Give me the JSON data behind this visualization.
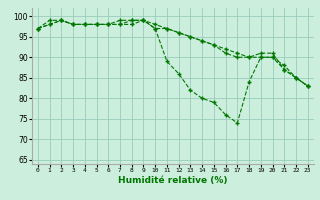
{
  "xlabel": "Humidité relative (%)",
  "background_color": "#cceedd",
  "grid_color": "#99ccbb",
  "line_color": "#007700",
  "marker": "+",
  "x": [
    0,
    1,
    2,
    3,
    4,
    5,
    6,
    7,
    8,
    9,
    10,
    11,
    12,
    13,
    14,
    15,
    16,
    17,
    18,
    19,
    20,
    21,
    22,
    23
  ],
  "line1": [
    97,
    99,
    99,
    98,
    98,
    98,
    98,
    99,
    99,
    99,
    97,
    89,
    86,
    82,
    80,
    79,
    76,
    74,
    84,
    90,
    90,
    88,
    85,
    83
  ],
  "line2": [
    97,
    98,
    99,
    98,
    98,
    98,
    98,
    98,
    98,
    99,
    98,
    97,
    96,
    95,
    94,
    93,
    92,
    91,
    90,
    90,
    90,
    87,
    85,
    83
  ],
  "line3": [
    97,
    98,
    99,
    98,
    98,
    98,
    98,
    98,
    99,
    99,
    97,
    97,
    96,
    95,
    94,
    93,
    91,
    90,
    90,
    91,
    91,
    87,
    85,
    83
  ],
  "ylim": [
    64,
    102
  ],
  "yticks": [
    65,
    70,
    75,
    80,
    85,
    90,
    95,
    100
  ],
  "xlim": [
    -0.5,
    23.5
  ]
}
